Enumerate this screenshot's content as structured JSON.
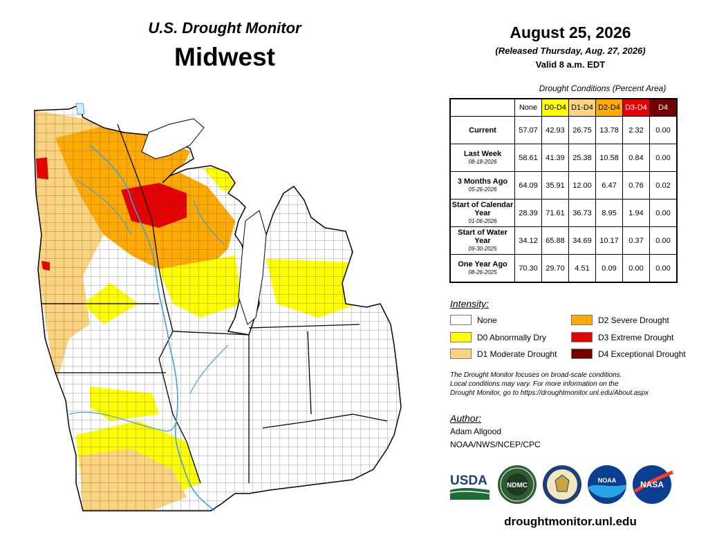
{
  "header": {
    "title": "U.S. Drought Monitor",
    "region": "Midwest",
    "date": "August 25, 2026",
    "released": "(Released Thursday, Aug. 27, 2026)",
    "valid": "Valid 8 a.m. EDT"
  },
  "table": {
    "caption": "Drought Conditions (Percent Area)",
    "columns": [
      "None",
      "D0-D4",
      "D1-D4",
      "D2-D4",
      "D3-D4",
      "D4"
    ],
    "rows": [
      {
        "label": "Current",
        "date": "",
        "values": [
          "57.07",
          "42.93",
          "26.75",
          "13.78",
          "2.32",
          "0.00"
        ]
      },
      {
        "label": "Last Week",
        "date": "08-18-2026",
        "values": [
          "58.61",
          "41.39",
          "25.38",
          "10.58",
          "0.84",
          "0.00"
        ]
      },
      {
        "label": "3 Months Ago",
        "date": "05-26-2026",
        "values": [
          "64.09",
          "35.91",
          "12.00",
          "6.47",
          "0.76",
          "0.02"
        ]
      },
      {
        "label": "Start of Calendar Year",
        "date": "01-06-2026",
        "values": [
          "28.39",
          "71.61",
          "36.73",
          "8.95",
          "1.94",
          "0.00"
        ]
      },
      {
        "label": "Start of Water Year",
        "date": "09-30-2025",
        "values": [
          "34.12",
          "65.88",
          "34.69",
          "10.17",
          "0.37",
          "0.00"
        ]
      },
      {
        "label": "One Year Ago",
        "date": "08-26-2025",
        "values": [
          "70.30",
          "29.70",
          "4.51",
          "0.09",
          "0.00",
          "0.00"
        ]
      }
    ]
  },
  "legend": {
    "title": "Intensity:",
    "items": [
      {
        "label": "None",
        "color": "#ffffff"
      },
      {
        "label": "D0 Abnormally Dry",
        "color": "#ffff00"
      },
      {
        "label": "D1 Moderate Drought",
        "color": "#fcd37f"
      },
      {
        "label": "D2 Severe Drought",
        "color": "#ffaa00"
      },
      {
        "label": "D3 Extreme Drought",
        "color": "#e60000"
      },
      {
        "label": "D4 Exceptional Drought",
        "color": "#730000"
      }
    ]
  },
  "note": {
    "line1": "The Drought Monitor focuses on broad-scale conditions.",
    "line2": "Local conditions may vary. For more information on the",
    "line3": "Drought Monitor, go to https://droughtmonitor.unl.edu/About.aspx"
  },
  "author": {
    "title": "Author:",
    "name": "Adam Allgood",
    "org": "NOAA/NWS/NCEP/CPC"
  },
  "logos": {
    "usda": "USDA",
    "ndmc": "NDMC",
    "noaa": "NOAA",
    "nasa": "NASA"
  },
  "website": "droughtmonitor.unl.edu",
  "colors": {
    "lake": "#d7f0fb",
    "river": "#3fa0e0",
    "none": "#ffffff",
    "d0": "#ffff00",
    "d1": "#fcd37f",
    "d2": "#ffaa00",
    "d3": "#e60000",
    "d4": "#730000"
  }
}
